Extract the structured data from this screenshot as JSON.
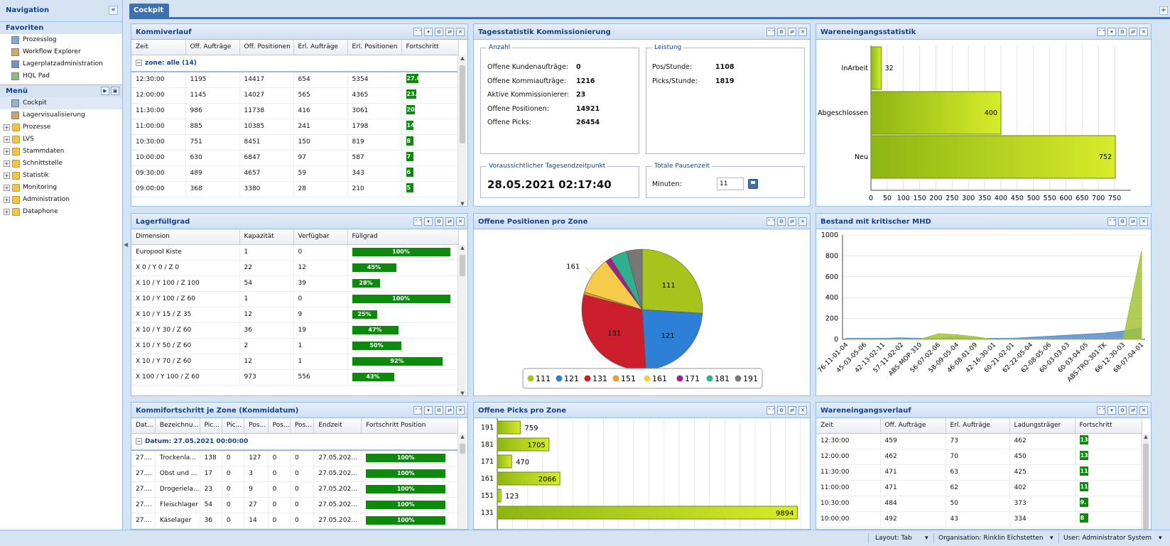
{
  "sidebar": {
    "title": "Navigation",
    "collapse_glyph": "«",
    "favorites_title": "Favoriten",
    "favorites": [
      {
        "label": "Prozesslog",
        "icon": "table-icon"
      },
      {
        "label": "Workflow Explorer",
        "icon": "magnifier-icon"
      },
      {
        "label": "Lagerplatzadministration",
        "icon": "grid-icon"
      },
      {
        "label": "HQL Pad",
        "icon": "notepad-icon"
      }
    ],
    "menu_title": "Menü",
    "menu": [
      {
        "label": "Cockpit",
        "icon": "cockpit-icon"
      },
      {
        "label": "Lagervisualisierung",
        "icon": "shelf-icon"
      }
    ],
    "folders": [
      "Prozesse",
      "LVS",
      "Stammdaten",
      "Schnittstelle",
      "Statistik",
      "Monitoring",
      "Administration",
      "Dataphone"
    ]
  },
  "tabs": {
    "active": "Cockpit"
  },
  "panel_tools": [
    "⌃⌃",
    "▾",
    "⚙",
    "⇄",
    "✕"
  ],
  "kommiverlauf": {
    "title": "Kommiverlauf",
    "columns": [
      "Zeit",
      "Off. Aufträge",
      "Off. Positionen",
      "Erl. Aufträge",
      "Erl. Positionen",
      "Fortschritt"
    ],
    "group": "zone: alle (14)",
    "rows": [
      {
        "c": [
          "12:30:00",
          "1195",
          "14417",
          "654",
          "5354"
        ],
        "p": "27.0",
        "f": 0.27
      },
      {
        "c": [
          "12:00:00",
          "1145",
          "14027",
          "565",
          "4365"
        ],
        "p": "23.",
        "f": 0.23
      },
      {
        "c": [
          "11:30:00",
          "986",
          "11738",
          "416",
          "3061"
        ],
        "p": "20.",
        "f": 0.2
      },
      {
        "c": [
          "11:00:00",
          "885",
          "10385",
          "241",
          "1798"
        ],
        "p": "14",
        "f": 0.14
      },
      {
        "c": [
          "10:30:00",
          "751",
          "8451",
          "150",
          "819"
        ],
        "p": "8",
        "f": 0.08
      },
      {
        "c": [
          "10:00:00",
          "630",
          "6847",
          "97",
          "587"
        ],
        "p": "7",
        "f": 0.07
      },
      {
        "c": [
          "09:30:00",
          "489",
          "4657",
          "59",
          "343"
        ],
        "p": "6",
        "f": 0.06
      },
      {
        "c": [
          "09:00:00",
          "368",
          "3380",
          "28",
          "210"
        ],
        "p": "5",
        "f": 0.05
      }
    ]
  },
  "tagesstatistik": {
    "title": "Tagesstatistik Kommissionierung",
    "anzahl_legend": "Anzahl",
    "anzahl": [
      {
        "k": "Offene Kundenaufträge:",
        "v": "0"
      },
      {
        "k": "Offene Kommiaufträge:",
        "v": "1216"
      },
      {
        "k": "Aktive Kommissionierer:",
        "v": "23"
      },
      {
        "k": "Offene Positionen:",
        "v": "14921"
      },
      {
        "k": "Offene Picks:",
        "v": "26454"
      }
    ],
    "leistung_legend": "Leistung",
    "leistung": [
      {
        "k": "Pos/Stunde:",
        "v": "1108"
      },
      {
        "k": "Picks/Stunde:",
        "v": "1819"
      }
    ],
    "ende_legend": "Voraussichtlicher Tagesendzeitpunkt",
    "ende_value": "28.05.2021 02:17:40",
    "pause_legend": "Totale Pausenzeit",
    "pause_label": "Minuten:",
    "pause_value": "11"
  },
  "wareneingangsstatistik": {
    "title": "Wareneingangsstatistik",
    "chart_data": {
      "type": "bar",
      "orientation": "horizontal",
      "categories": [
        "InArbeit",
        "Abgeschlossen",
        "Neu"
      ],
      "values": [
        32,
        400,
        752
      ],
      "xlim": [
        0,
        800
      ],
      "ticks": [
        0,
        50,
        100,
        150,
        200,
        250,
        300,
        350,
        400,
        450,
        500,
        550,
        600,
        650,
        700,
        750
      ],
      "color": "#a8cc1a"
    }
  },
  "lagerfuellgrad": {
    "title": "Lagerfüllgrad",
    "columns": [
      "Dimension",
      "Kapazität",
      "Verfügbar",
      "Füllgrad"
    ],
    "rows": [
      {
        "c": [
          "Europool Kiste",
          "1",
          "0"
        ],
        "p": "100%",
        "f": 1.0
      },
      {
        "c": [
          "X 0 / Y 0 / Z 0",
          "22",
          "12"
        ],
        "p": "45%",
        "f": 0.45
      },
      {
        "c": [
          "X 10 / Y 100 / Z 100",
          "54",
          "39"
        ],
        "p": "28%",
        "f": 0.28
      },
      {
        "c": [
          "X 10 / Y 100 / Z 60",
          "1",
          "0"
        ],
        "p": "100%",
        "f": 1.0
      },
      {
        "c": [
          "X 10 / Y 15 / Z 35",
          "12",
          "9"
        ],
        "p": "25%",
        "f": 0.25
      },
      {
        "c": [
          "X 10 / Y 30 / Z 60",
          "36",
          "19"
        ],
        "p": "47%",
        "f": 0.47
      },
      {
        "c": [
          "X 10 / Y 50 / Z 60",
          "2",
          "1"
        ],
        "p": "50%",
        "f": 0.5
      },
      {
        "c": [
          "X 10 / Y 70 / Z 60",
          "12",
          "1"
        ],
        "p": "92%",
        "f": 0.92
      },
      {
        "c": [
          "X 100 / Y 100 / Z 60",
          "973",
          "556"
        ],
        "p": "43%",
        "f": 0.43
      }
    ]
  },
  "offene_positionen": {
    "title": "Offene Positionen pro Zone",
    "chart_data": {
      "type": "pie",
      "slices": [
        {
          "name": "111",
          "value": 26,
          "color": "#a8c41c",
          "label": "111"
        },
        {
          "name": "121",
          "value": 23,
          "color": "#2e7fd6",
          "label": "121"
        },
        {
          "name": "131",
          "value": 30,
          "color": "#cc1f2d",
          "label": "131"
        },
        {
          "name": "151",
          "value": 0.7,
          "color": "#f29a26",
          "label": ""
        },
        {
          "name": "161",
          "value": 10,
          "color": "#f7cb4a",
          "label": "161"
        },
        {
          "name": "171",
          "value": 1.6,
          "color": "#a0218c",
          "label": ""
        },
        {
          "name": "181",
          "value": 4.5,
          "color": "#2fb08e",
          "label": ""
        },
        {
          "name": "191",
          "value": 4.2,
          "color": "#777777",
          "label": ""
        }
      ]
    },
    "legend": [
      "111",
      "121",
      "131",
      "151",
      "161",
      "171",
      "181",
      "191"
    ]
  },
  "bestand": {
    "title": "Bestand mit kritischer MHD",
    "chart_data": {
      "type": "area",
      "ylim": [
        0,
        1000
      ],
      "yticks": [
        0,
        200,
        400,
        600,
        800,
        1000
      ],
      "categories": [
        "76-11-01-04",
        "45-03-05-06",
        "42-13-02-11",
        "57-11-02-02",
        "ABS-MOP-310",
        "56-07-02-06",
        "58-09-05-04",
        "46-08-01-09",
        "42-16-30-01",
        "60-21-02-01",
        "62-22-05-04",
        "62-08-05-06",
        "60-03-03-03",
        "60-03-04-05",
        "ABS-TRO-301-TK",
        "66-12-30-03",
        "68-07-04-01"
      ],
      "series": [
        {
          "color": "#5b8cc8",
          "values": [
            10,
            10,
            10,
            15,
            10,
            10,
            25,
            10,
            10,
            10,
            20,
            30,
            40,
            50,
            60,
            80,
            110
          ]
        },
        {
          "color": "#a3c43a",
          "values": [
            0,
            0,
            0,
            0,
            0,
            55,
            45,
            25,
            0,
            0,
            0,
            0,
            0,
            0,
            0,
            0,
            850
          ]
        }
      ]
    }
  },
  "kommifortschritt": {
    "title": "Kommifortschritt je Zone (Kommidatum)",
    "columns": [
      "Dat...",
      "Bezeichnu...",
      "Pic...",
      "Pic...",
      "Pos...",
      "Pos...",
      "Pos...",
      "Endzeit",
      "Fortschritt Position"
    ],
    "group": "Datum: 27.05.2021 00:00:00",
    "rows": [
      {
        "c": [
          "27....",
          "Trockenla...",
          "138",
          "0",
          "127",
          "0",
          "0",
          "27.05.202..."
        ],
        "p": "100%"
      },
      {
        "c": [
          "27....",
          "Obst und ...",
          "17",
          "0",
          "3",
          "0",
          "0",
          "27.05.202..."
        ],
        "p": "100%"
      },
      {
        "c": [
          "27....",
          "Drogeriela...",
          "23",
          "0",
          "9",
          "0",
          "0",
          "27.05.202..."
        ],
        "p": "100%"
      },
      {
        "c": [
          "27....",
          "Fleischlager",
          "54",
          "0",
          "27",
          "0",
          "0",
          "27.05.202..."
        ],
        "p": "100%"
      },
      {
        "c": [
          "27....",
          "Käselager",
          "36",
          "0",
          "14",
          "0",
          "0",
          "27.05.202..."
        ],
        "p": "100%"
      }
    ]
  },
  "offene_picks": {
    "title": "Offene Picks pro Zone",
    "chart_data": {
      "type": "bar",
      "orientation": "horizontal",
      "categories": [
        "191",
        "181",
        "171",
        "161",
        "151",
        "131"
      ],
      "values": [
        759,
        1705,
        470,
        2066,
        123,
        9894
      ],
      "xmax": 10000,
      "color": "#a8cc1a"
    }
  },
  "wareneingangsverlauf": {
    "title": "Wareneingangsverlauf",
    "columns": [
      "Zeit",
      "Off. Aufträge",
      "Erl. Aufträge",
      "Ladungsträger",
      "Fortschritt"
    ],
    "rows": [
      {
        "c": [
          "12:30:00",
          "459",
          "73",
          "462"
        ],
        "p": "13"
      },
      {
        "c": [
          "12:00:00",
          "462",
          "70",
          "450"
        ],
        "p": "13"
      },
      {
        "c": [
          "11:30:00",
          "471",
          "63",
          "425"
        ],
        "p": "11"
      },
      {
        "c": [
          "11:00:00",
          "471",
          "62",
          "402"
        ],
        "p": "11"
      },
      {
        "c": [
          "10:30:00",
          "484",
          "50",
          "373"
        ],
        "p": "9."
      },
      {
        "c": [
          "10:00:00",
          "492",
          "43",
          "334"
        ],
        "p": "8"
      }
    ]
  },
  "statusbar": {
    "layout": "Layout: Tab",
    "organisation": "Organisation: Rinklin Eichstetten",
    "user": "User: Administrator System"
  }
}
